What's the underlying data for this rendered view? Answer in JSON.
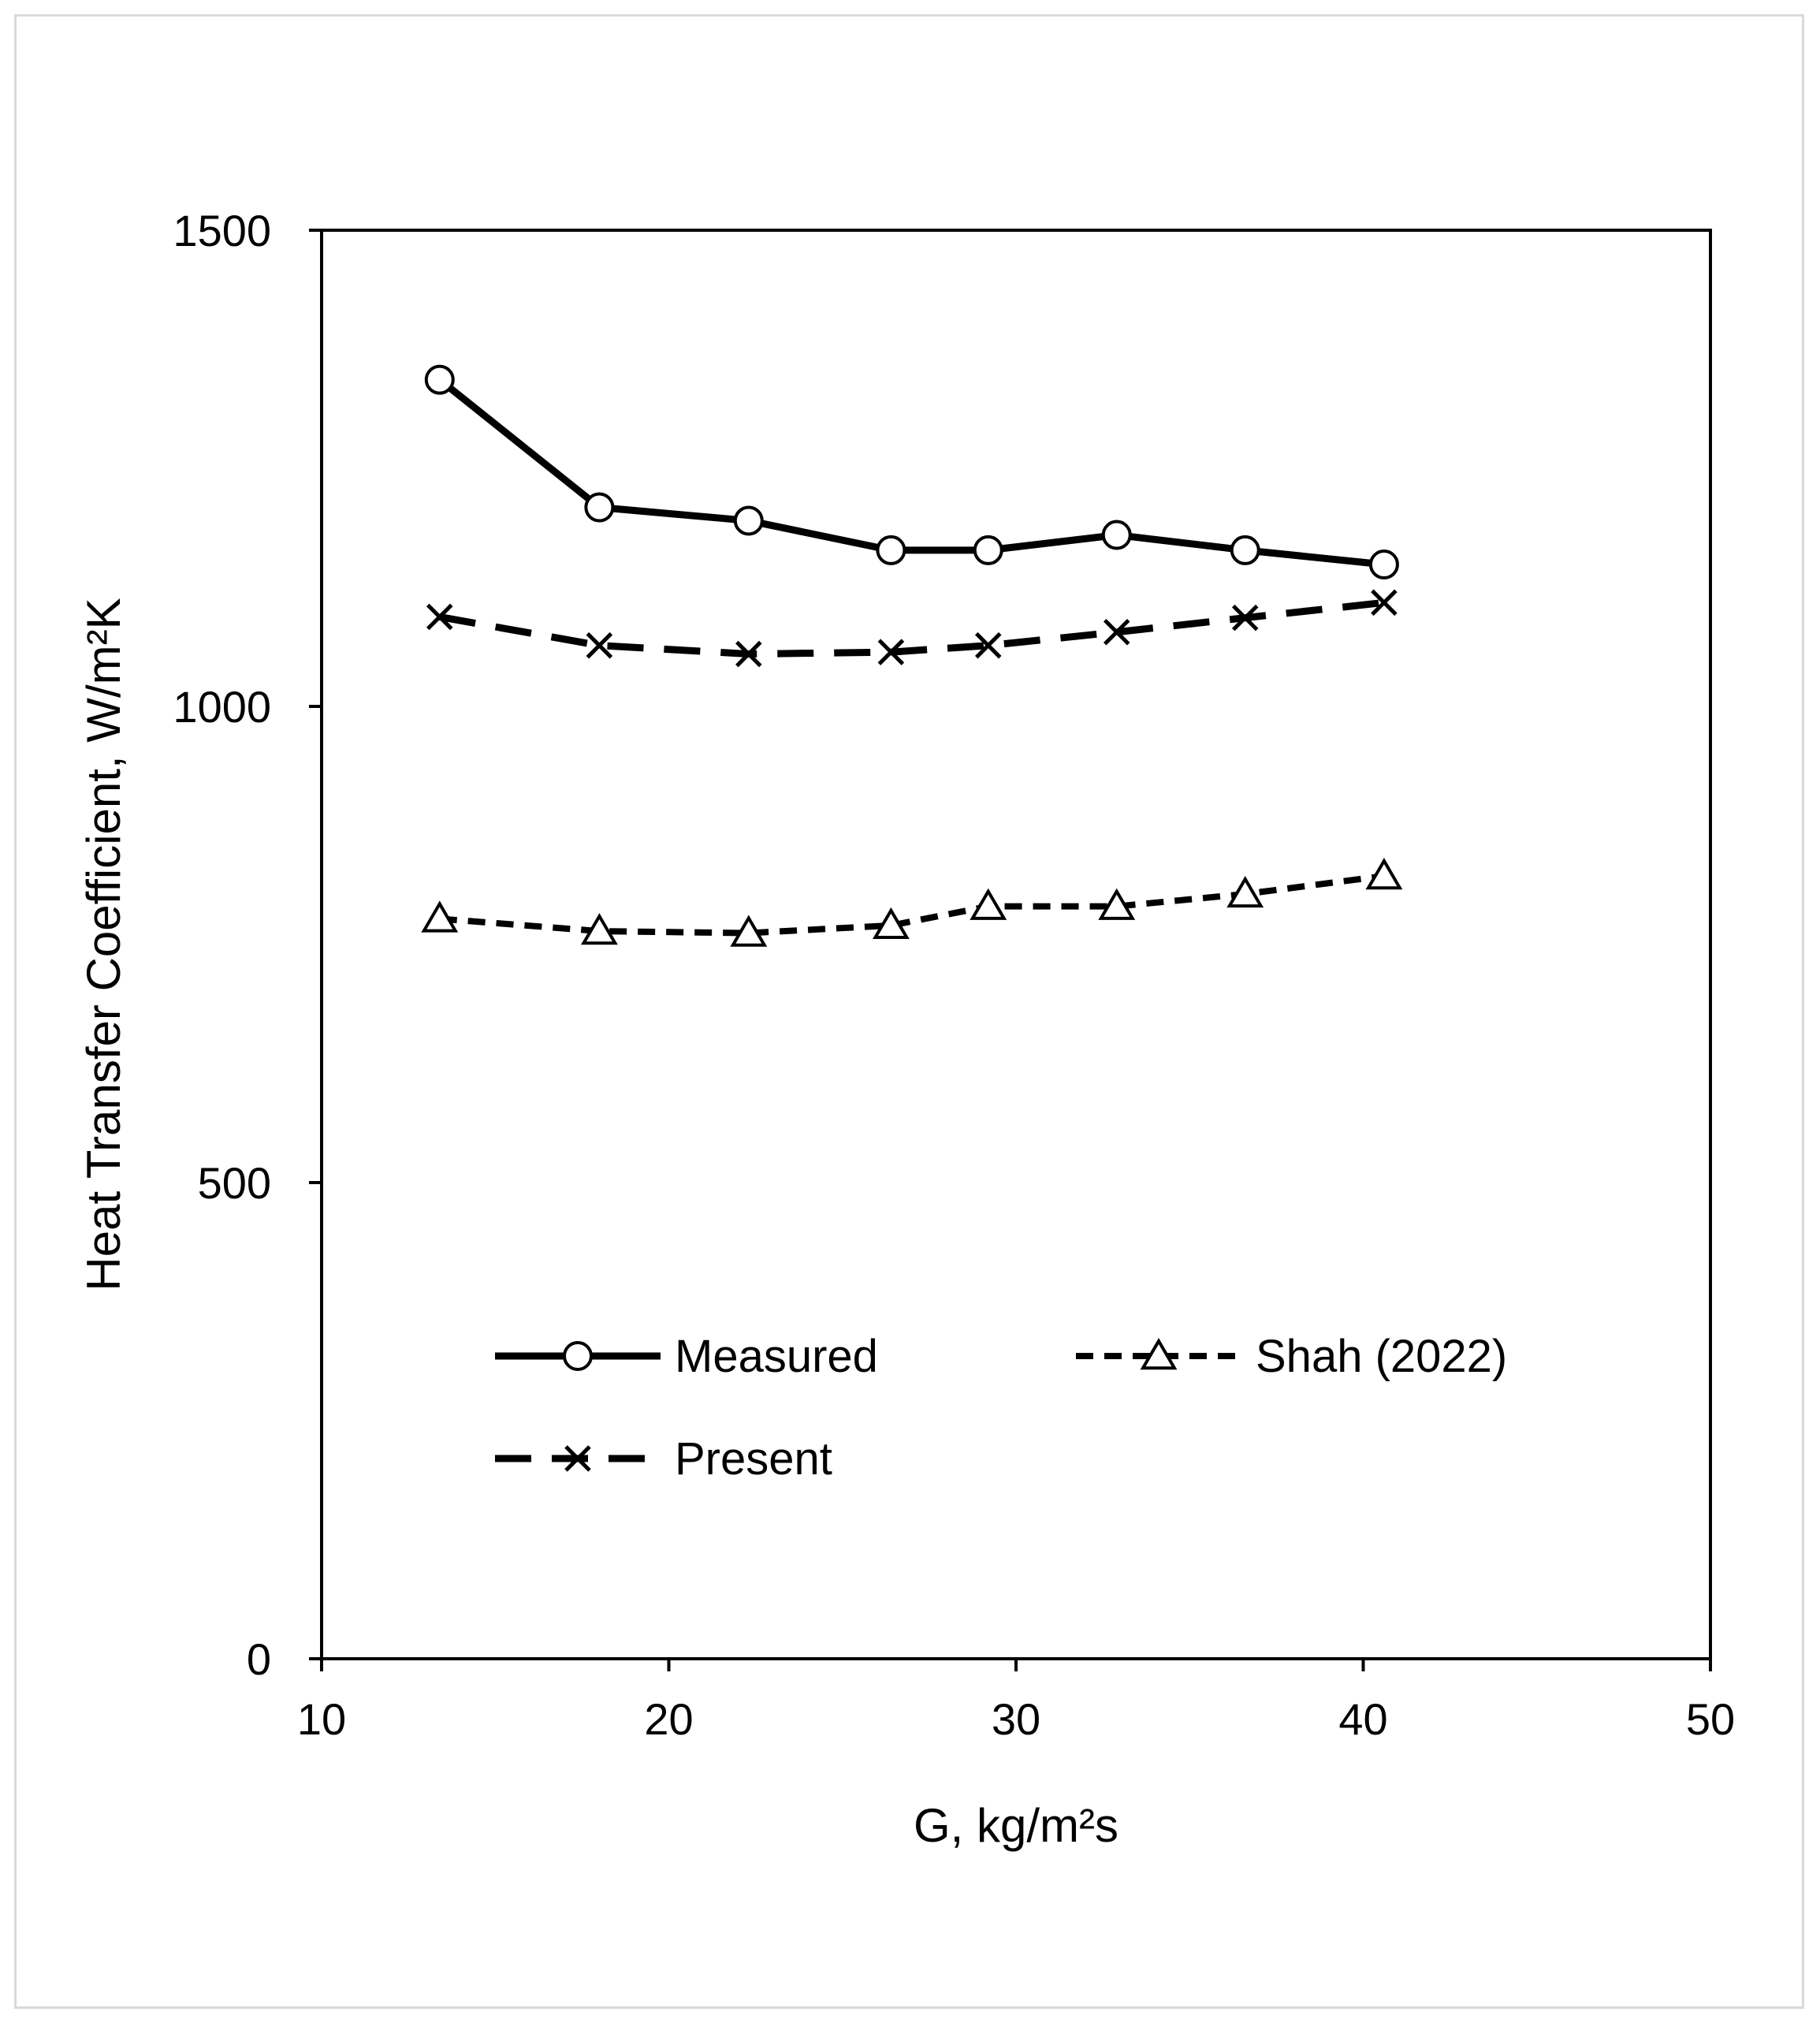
{
  "chart_data": {
    "type": "line",
    "title": "",
    "xlabel": "G, kg/m²s",
    "ylabel": "Heat Transfer Coefficient, W/m²K",
    "xlim": [
      10,
      50
    ],
    "ylim": [
      0,
      1500
    ],
    "xticks": [
      10,
      20,
      30,
      40,
      50
    ],
    "yticks": [
      0,
      500,
      1000,
      1500
    ],
    "xtick_labels": [
      "10",
      "20",
      "30",
      "40",
      "50"
    ],
    "ytick_labels": [
      "0",
      "500",
      "1000",
      "1500"
    ],
    "grid": false,
    "legend_position": "lower-center",
    "series": [
      {
        "name": "Measured",
        "label": "Measured",
        "marker": "circle",
        "line_style": "solid",
        "x": [
          13.4,
          18.0,
          22.3,
          26.4,
          29.2,
          32.9,
          36.6,
          40.6
        ],
        "y": [
          1343,
          1209,
          1195,
          1164,
          1164,
          1180,
          1164,
          1149
        ]
      },
      {
        "name": "Shah (2022)",
        "label": "Shah (2022)",
        "marker": "triangle",
        "line_style": "short-dash",
        "x": [
          13.4,
          18.0,
          22.3,
          26.4,
          29.2,
          32.9,
          36.6,
          40.6
        ],
        "y": [
          777,
          764,
          762,
          770,
          790,
          790,
          803,
          822
        ]
      },
      {
        "name": "Present",
        "label": "Present",
        "marker": "x",
        "line_style": "long-dash",
        "x": [
          13.4,
          18.0,
          22.3,
          26.4,
          29.2,
          32.9,
          36.6,
          40.6
        ],
        "y": [
          1094,
          1064,
          1055,
          1057,
          1064,
          1078,
          1093,
          1109
        ]
      }
    ]
  }
}
